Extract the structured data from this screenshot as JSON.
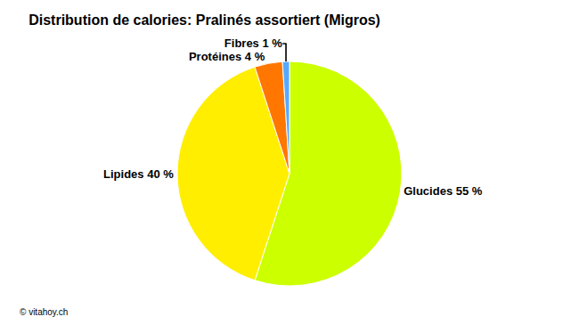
{
  "chart_data": {
    "type": "pie",
    "title": "Distribution de calories: Pralinés assortiert (Migros)",
    "categories": [
      "Glucides 55 %",
      "Lipides 40 %",
      "Protéines 4 %",
      "Fibres 1 %"
    ],
    "values": [
      55,
      40,
      4,
      1
    ],
    "colors": [
      "#CCFF00",
      "#FFEE00",
      "#FF7700",
      "#55AAFF"
    ],
    "annotations": [
      "© vitahoy.ch"
    ]
  }
}
